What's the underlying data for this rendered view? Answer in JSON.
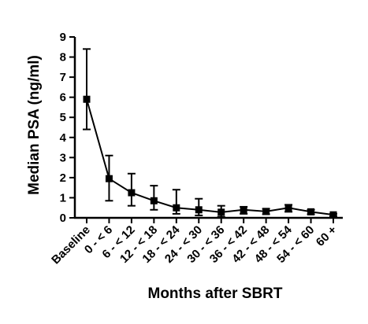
{
  "chart_data": {
    "type": "line",
    "xlabel": "Months after SBRT",
    "ylabel": "Median PSA (ng/ml)",
    "categories": [
      "Baseline",
      "0 - < 6",
      "6 - < 12",
      "12 - < 18",
      "18 - < 24",
      "24 - < 30",
      "30 - < 36",
      "36 - < 42",
      "42 - < 48",
      "48 - < 54",
      "54 - < 60",
      "60 +"
    ],
    "series": [
      {
        "values": [
          5.9,
          1.95,
          1.25,
          0.85,
          0.5,
          0.4,
          0.28,
          0.4,
          0.32,
          0.5,
          0.3,
          0.15
        ],
        "error_upper": [
          8.4,
          3.1,
          2.2,
          1.6,
          1.4,
          0.95,
          0.6,
          0.55,
          0.45,
          0.65,
          0.4,
          0.2
        ],
        "error_lower": [
          4.4,
          0.85,
          0.6,
          0.4,
          0.2,
          0.12,
          0.05,
          0.2,
          0.18,
          0.3,
          0.18,
          0.08
        ]
      }
    ],
    "yticks": [
      0,
      1,
      2,
      3,
      4,
      5,
      6,
      7,
      8,
      9
    ],
    "ylim": [
      0,
      9
    ],
    "grid": false,
    "marker": "square",
    "color": "#000000"
  }
}
